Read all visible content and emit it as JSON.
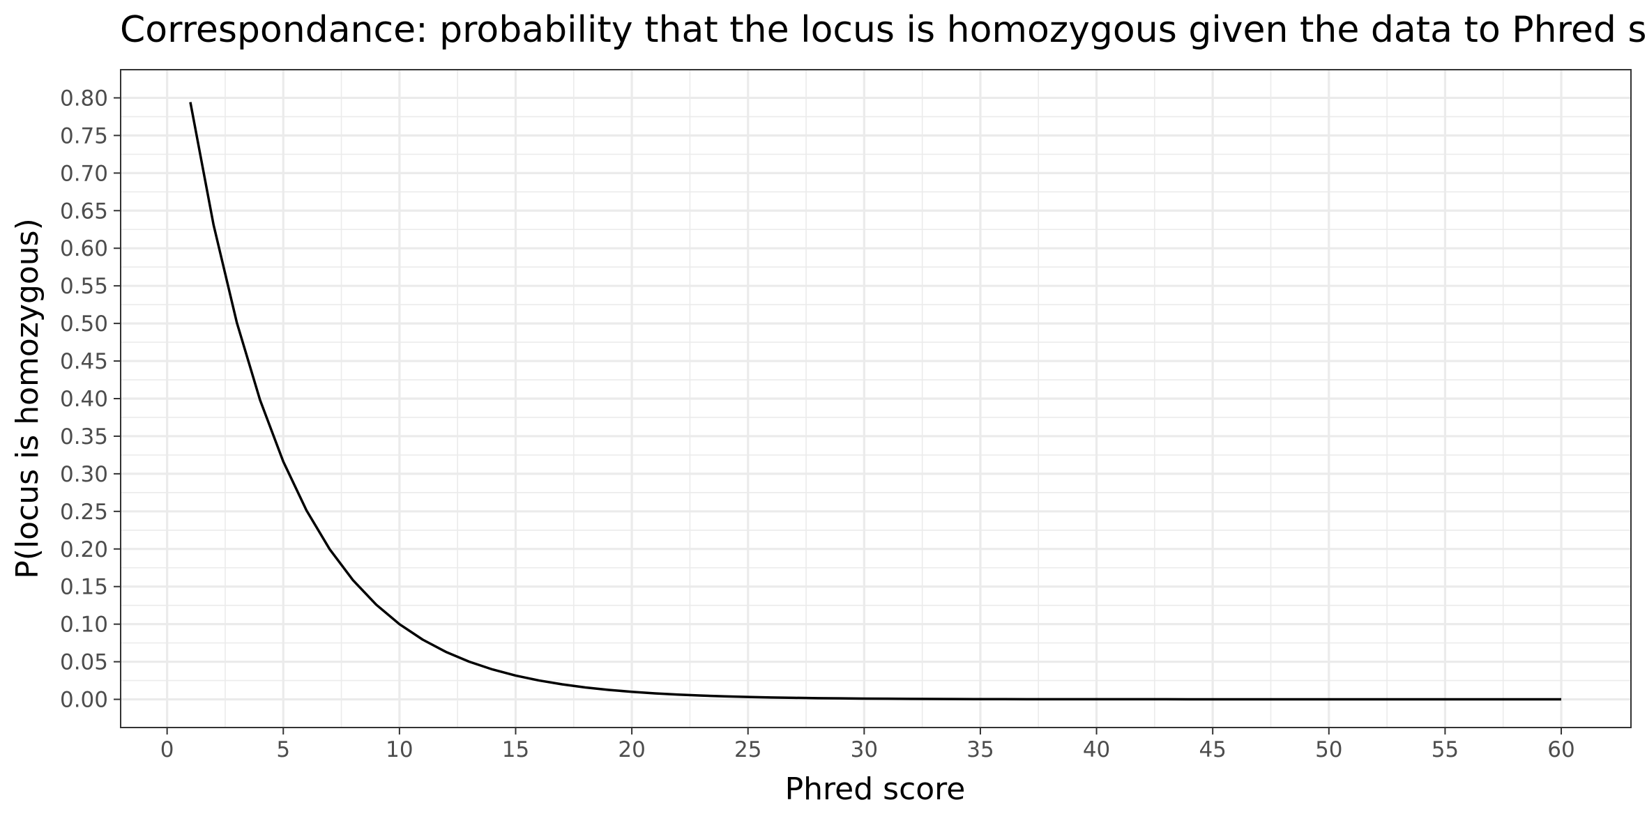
{
  "chart_data": {
    "type": "line",
    "title": "Correspondance: probability that the locus is homozygous given the data  to Phred score",
    "xlabel": "Phred score",
    "ylabel": "P(locus is homozygous)",
    "xlim": [
      -2,
      63
    ],
    "ylim": [
      -0.0375,
      0.8375
    ],
    "x_ticks": [
      0,
      5,
      10,
      15,
      20,
      25,
      30,
      35,
      40,
      45,
      50,
      55,
      60
    ],
    "x_tick_labels": [
      "0",
      "5",
      "10",
      "15",
      "20",
      "25",
      "30",
      "35",
      "40",
      "45",
      "50",
      "55",
      "60"
    ],
    "y_ticks": [
      0,
      0.05,
      0.1,
      0.15,
      0.2,
      0.25,
      0.3,
      0.35,
      0.4,
      0.45,
      0.5,
      0.55,
      0.6,
      0.65,
      0.7,
      0.75,
      0.8
    ],
    "y_tick_labels": [
      "0.00",
      "0.05",
      "0.10",
      "0.15",
      "0.20",
      "0.25",
      "0.30",
      "0.35",
      "0.40",
      "0.45",
      "0.50",
      "0.55",
      "0.60",
      "0.65",
      "0.70",
      "0.75",
      "0.80"
    ],
    "grid": true,
    "series": [
      {
        "color": "#000000",
        "x": [
          1,
          2,
          3,
          4,
          5,
          6,
          7,
          8,
          9,
          10,
          11,
          12,
          13,
          14,
          15,
          16,
          17,
          18,
          19,
          20,
          21,
          22,
          23,
          24,
          25,
          26,
          27,
          28,
          29,
          30,
          31,
          32,
          33,
          34,
          35,
          36,
          37,
          38,
          39,
          40,
          41,
          42,
          43,
          44,
          45,
          46,
          47,
          48,
          49,
          50,
          51,
          52,
          53,
          54,
          55,
          56,
          57,
          58,
          59,
          60
        ],
        "y": [
          0.7943,
          0.631,
          0.5012,
          0.3981,
          0.3162,
          0.2512,
          0.1995,
          0.1585,
          0.1259,
          0.1,
          0.0794,
          0.0631,
          0.0501,
          0.0398,
          0.0316,
          0.0251,
          0.02,
          0.0158,
          0.0126,
          0.01,
          0.0079,
          0.0063,
          0.005,
          0.004,
          0.0032,
          0.0025,
          0.002,
          0.0016,
          0.0013,
          0.001,
          0.0008,
          0.0006,
          0.0005,
          0.0004,
          0.0003,
          0.0003,
          0.0002,
          0.0002,
          0.0001,
          0.0001,
          0.0001,
          0.0001,
          0.0001,
          0,
          0,
          0,
          0,
          0,
          0,
          0,
          0,
          0,
          0,
          0,
          0,
          0,
          0,
          0,
          0,
          0
        ]
      }
    ]
  }
}
